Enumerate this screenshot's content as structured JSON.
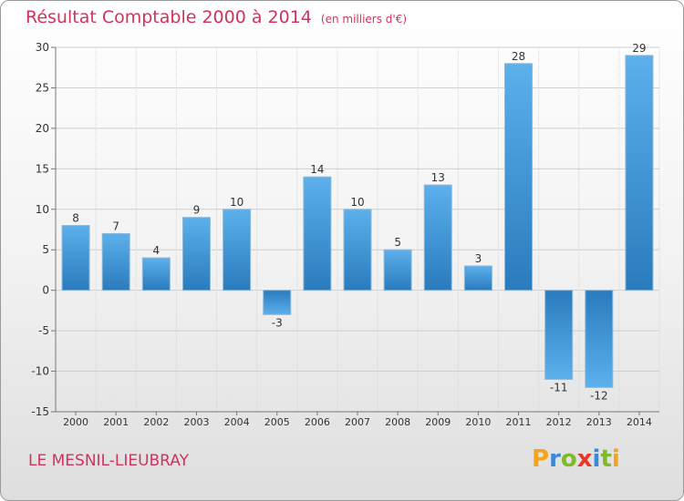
{
  "title": "Résultat Comptable 2000 à 2014",
  "subtitle": "(en milliers d'€)",
  "location": "LE MESNIL-LIEUBRAY",
  "logo": {
    "letters": [
      "P",
      "r",
      "o",
      "x",
      "i",
      "t",
      "i"
    ],
    "colors": [
      "#f4a31d",
      "#3a8ad6",
      "#7dbb2c",
      "#e8352d",
      "#3a8ad6",
      "#7dbb2c",
      "#f4a31d"
    ]
  },
  "colors": {
    "bar_top": "#5aaeea",
    "bar_bottom": "#2a7cbf",
    "title": "#d0345c"
  },
  "chart_data": {
    "type": "bar",
    "title": "Résultat Comptable 2000 à 2014",
    "xlabel": "",
    "ylabel": "",
    "categories": [
      "2000",
      "2001",
      "2002",
      "2003",
      "2004",
      "2005",
      "2006",
      "2007",
      "2008",
      "2009",
      "2010",
      "2011",
      "2012",
      "2013",
      "2014"
    ],
    "values": [
      8,
      7,
      4,
      9,
      10,
      -3,
      14,
      10,
      5,
      13,
      3,
      28,
      -11,
      -12,
      29
    ],
    "labels": [
      "8",
      "7",
      "4",
      "9",
      "10",
      "-3",
      "14",
      "10",
      "5",
      "13",
      "3",
      "28",
      "-11",
      "-12",
      "29"
    ],
    "ylim": [
      -15,
      30
    ],
    "yticks": [
      30,
      25,
      20,
      15,
      10,
      5,
      0,
      -5,
      -10,
      -15
    ],
    "grid": true
  }
}
